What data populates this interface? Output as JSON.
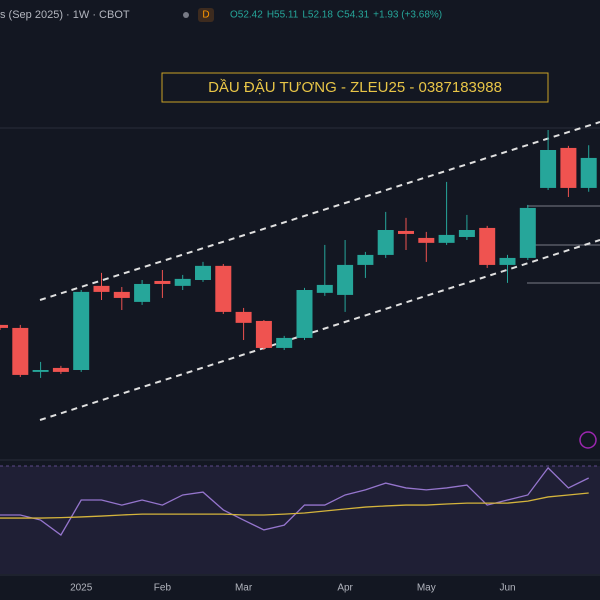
{
  "header": {
    "title": "s (Sep 2025) · 1W · CBOT",
    "badge": "D",
    "ohlc": [
      "O52.42",
      "H55.11",
      "L52.18",
      "C54.31",
      "+1.93 (+3.68%)"
    ]
  },
  "chart_data": [
    {
      "type": "candlestick",
      "title": "DẦU ĐẬU TƯƠNG - ZLEU25 - 0387183988",
      "categories": [
        null,
        null,
        null,
        null,
        "2025",
        null,
        null,
        null,
        "Feb",
        null,
        null,
        null,
        "Mar",
        null,
        null,
        null,
        null,
        "Apr",
        null,
        null,
        null,
        "May",
        null,
        null,
        null,
        "Jun",
        null,
        null,
        null,
        null
      ],
      "open": [
        43.79,
        43.6,
        40.83,
        41.08,
        40.95,
        46.25,
        45.87,
        45.24,
        46.56,
        46.25,
        46.62,
        47.51,
        44.61,
        44.04,
        42.34,
        42.97,
        45.81,
        45.68,
        47.57,
        48.2,
        49.71,
        49.27,
        48.96,
        49.33,
        49.9,
        47.57,
        48.01,
        52.42,
        54.94,
        52.42
      ],
      "high": [
        43.79,
        43.79,
        41.46,
        41.21,
        45.99,
        47.07,
        46.18,
        46.62,
        47.25,
        46.94,
        47.76,
        47.63,
        44.86,
        44.1,
        43.1,
        46.12,
        48.83,
        49.14,
        48.39,
        50.91,
        50.53,
        49.65,
        52.8,
        50.72,
        50.03,
        48.2,
        51.35,
        56.07,
        55.07,
        55.11
      ],
      "low": [
        43.47,
        40.51,
        40.45,
        40.7,
        40.83,
        45.36,
        44.73,
        45.05,
        45.49,
        45.99,
        46.5,
        44.48,
        42.84,
        42.21,
        42.21,
        42.84,
        45.62,
        44.61,
        46.75,
        48.01,
        48.51,
        47.76,
        48.83,
        49.14,
        47.38,
        46.44,
        47.88,
        52.29,
        51.85,
        52.18
      ],
      "close": [
        43.6,
        40.64,
        40.95,
        40.83,
        45.87,
        45.87,
        45.49,
        46.37,
        46.37,
        46.69,
        47.51,
        44.61,
        43.92,
        42.34,
        42.97,
        45.99,
        46.31,
        47.57,
        48.2,
        49.77,
        49.52,
        48.96,
        49.46,
        49.77,
        47.57,
        48.01,
        51.16,
        54.81,
        52.42,
        54.31
      ],
      "up_color": "#26a69a",
      "down_color": "#ef5350",
      "ylim": [
        35.28,
        64.26
      ]
    },
    {
      "type": "line",
      "series": [
        {
          "color": "#9575cd",
          "values": [
            54.1,
            54.1,
            51.8,
            45.0,
            60.9,
            60.9,
            58.6,
            60.9,
            58.6,
            63.2,
            64.5,
            56.4,
            51.8,
            47.3,
            49.5,
            58.6,
            58.6,
            63.2,
            65.5,
            68.6,
            66.4,
            65.5,
            66.4,
            67.7,
            58.6,
            60.9,
            63.2,
            75.5,
            66.4,
            70.9
          ]
        },
        {
          "color": "#d4b43c",
          "values": [
            52.7,
            52.7,
            52.7,
            52.9,
            53.2,
            53.6,
            54.1,
            54.5,
            54.5,
            54.5,
            54.5,
            54.5,
            54.1,
            54.1,
            54.5,
            55.0,
            55.9,
            56.8,
            57.7,
            58.2,
            58.6,
            58.6,
            59.1,
            59.5,
            59.5,
            59.5,
            60.4,
            62.3,
            63.2,
            64.1
          ]
        }
      ],
      "ylim": [
        20,
        80
      ]
    }
  ]
}
